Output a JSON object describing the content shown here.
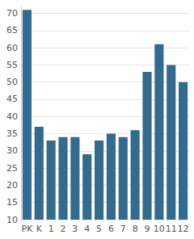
{
  "chart_data": {
    "type": "bar",
    "categories": [
      "PK",
      "K",
      "1",
      "2",
      "3",
      "4",
      "5",
      "6",
      "7",
      "8",
      "9",
      "10",
      "11",
      "12"
    ],
    "values": [
      71,
      37,
      33,
      34,
      34,
      29,
      33,
      35,
      34,
      36,
      53,
      61,
      55,
      50
    ],
    "color": "#336a90",
    "ylim": [
      10,
      72
    ],
    "yticks": [
      10,
      15,
      20,
      25,
      30,
      35,
      40,
      45,
      50,
      55,
      60,
      65,
      70
    ],
    "grid": true
  }
}
